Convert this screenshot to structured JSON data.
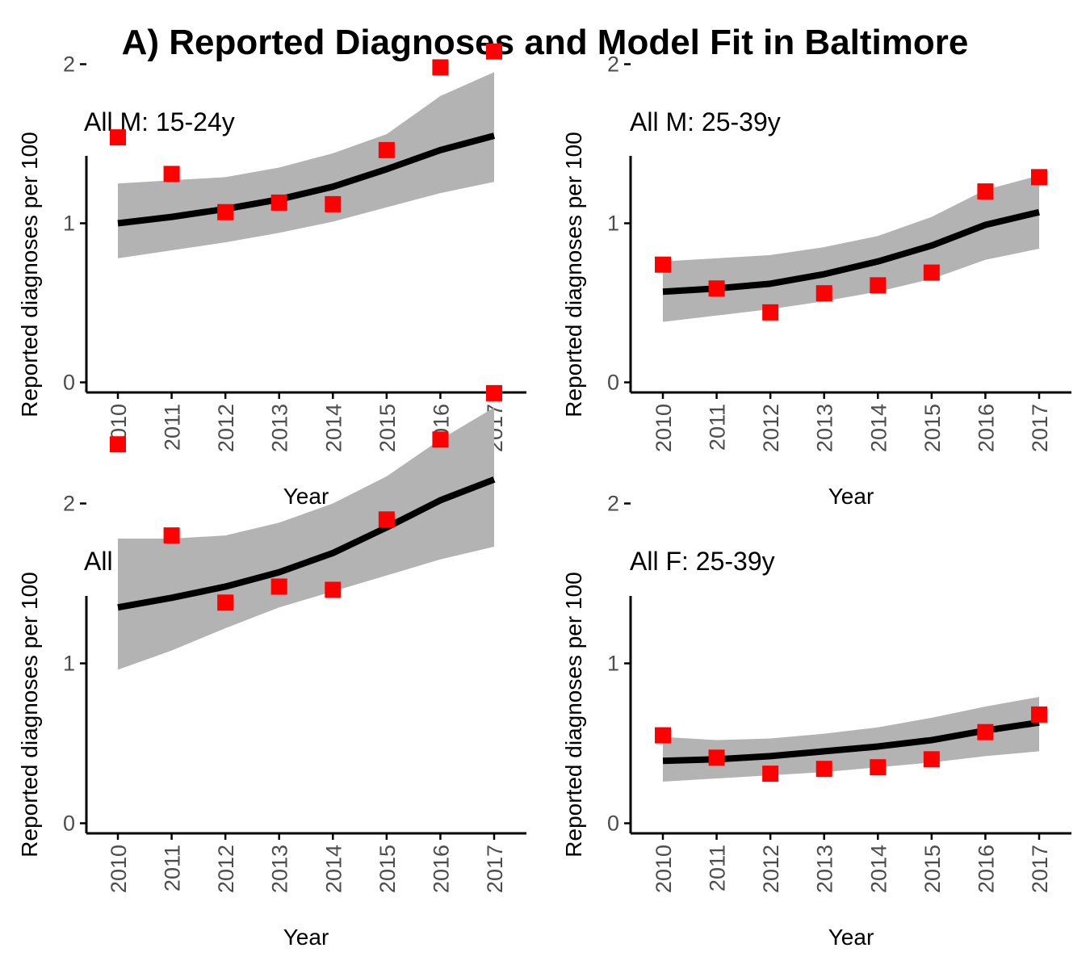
{
  "title": "A) Reported Diagnoses and Model Fit in Baltimore",
  "chart_data": [
    {
      "type": "line",
      "title": "All M: 15-24y",
      "xlabel": "Year",
      "ylabel": "Reported diagnoses per 100",
      "x": [
        2010,
        2011,
        2012,
        2013,
        2014,
        2015,
        2016,
        2017
      ],
      "ylim": [
        -0.12,
        2.85
      ],
      "yticks": [
        0,
        1,
        2
      ],
      "series": [
        {
          "role": "model-fit",
          "color": "#000000",
          "values": [
            1.0,
            1.04,
            1.09,
            1.15,
            1.23,
            1.34,
            1.46,
            1.55
          ]
        },
        {
          "role": "reported",
          "color": "#ff0000",
          "values": [
            1.54,
            1.31,
            1.07,
            1.13,
            1.12,
            1.46,
            1.98,
            2.08
          ]
        }
      ],
      "band": {
        "color": "#b3b3b3",
        "lower": [
          0.78,
          0.83,
          0.88,
          0.94,
          1.01,
          1.1,
          1.19,
          1.26
        ],
        "upper": [
          1.25,
          1.27,
          1.29,
          1.35,
          1.44,
          1.56,
          1.8,
          1.95
        ]
      }
    },
    {
      "type": "line",
      "title": "All M: 25-39y",
      "xlabel": "Year",
      "ylabel": "Reported diagnoses per 100",
      "x": [
        2010,
        2011,
        2012,
        2013,
        2014,
        2015,
        2016,
        2017
      ],
      "ylim": [
        -0.12,
        2.85
      ],
      "yticks": [
        0,
        1,
        2
      ],
      "series": [
        {
          "role": "model-fit",
          "color": "#000000",
          "values": [
            0.57,
            0.59,
            0.62,
            0.68,
            0.76,
            0.86,
            0.99,
            1.07
          ]
        },
        {
          "role": "reported",
          "color": "#ff0000",
          "values": [
            0.74,
            0.59,
            0.44,
            0.56,
            0.61,
            0.69,
            1.2,
            1.29
          ]
        }
      ],
      "band": {
        "color": "#b3b3b3",
        "lower": [
          0.38,
          0.42,
          0.46,
          0.51,
          0.57,
          0.65,
          0.77,
          0.84
        ],
        "upper": [
          0.76,
          0.78,
          0.8,
          0.85,
          0.92,
          1.04,
          1.21,
          1.3
        ]
      }
    },
    {
      "type": "line",
      "title": "All F: 15-24y",
      "xlabel": "Year",
      "ylabel": "Reported diagnoses per 100",
      "x": [
        2010,
        2011,
        2012,
        2013,
        2014,
        2015,
        2016,
        2017
      ],
      "ylim": [
        -0.12,
        2.85
      ],
      "yticks": [
        0,
        1,
        2
      ],
      "series": [
        {
          "role": "model-fit",
          "color": "#000000",
          "values": [
            1.35,
            1.41,
            1.48,
            1.57,
            1.69,
            1.85,
            2.02,
            2.15
          ]
        },
        {
          "role": "reported",
          "color": "#ff0000",
          "values": [
            2.37,
            1.8,
            1.38,
            1.48,
            1.46,
            1.9,
            2.4,
            2.69
          ]
        }
      ],
      "band": {
        "color": "#b3b3b3",
        "lower": [
          0.96,
          1.08,
          1.22,
          1.35,
          1.45,
          1.55,
          1.65,
          1.73
        ],
        "upper": [
          1.78,
          1.78,
          1.8,
          1.88,
          2.0,
          2.17,
          2.4,
          2.6
        ]
      }
    },
    {
      "type": "line",
      "title": "All F: 25-39y",
      "xlabel": "Year",
      "ylabel": "Reported diagnoses per 100",
      "x": [
        2010,
        2011,
        2012,
        2013,
        2014,
        2015,
        2016,
        2017
      ],
      "ylim": [
        -0.12,
        2.85
      ],
      "yticks": [
        0,
        1,
        2
      ],
      "series": [
        {
          "role": "model-fit",
          "color": "#000000",
          "values": [
            0.39,
            0.4,
            0.42,
            0.45,
            0.48,
            0.52,
            0.58,
            0.63
          ]
        },
        {
          "role": "reported",
          "color": "#ff0000",
          "values": [
            0.55,
            0.41,
            0.31,
            0.34,
            0.35,
            0.4,
            0.57,
            0.68
          ]
        }
      ],
      "band": {
        "color": "#b3b3b3",
        "lower": [
          0.26,
          0.28,
          0.3,
          0.32,
          0.35,
          0.38,
          0.42,
          0.45
        ],
        "upper": [
          0.54,
          0.52,
          0.53,
          0.56,
          0.6,
          0.66,
          0.73,
          0.79
        ]
      }
    }
  ]
}
